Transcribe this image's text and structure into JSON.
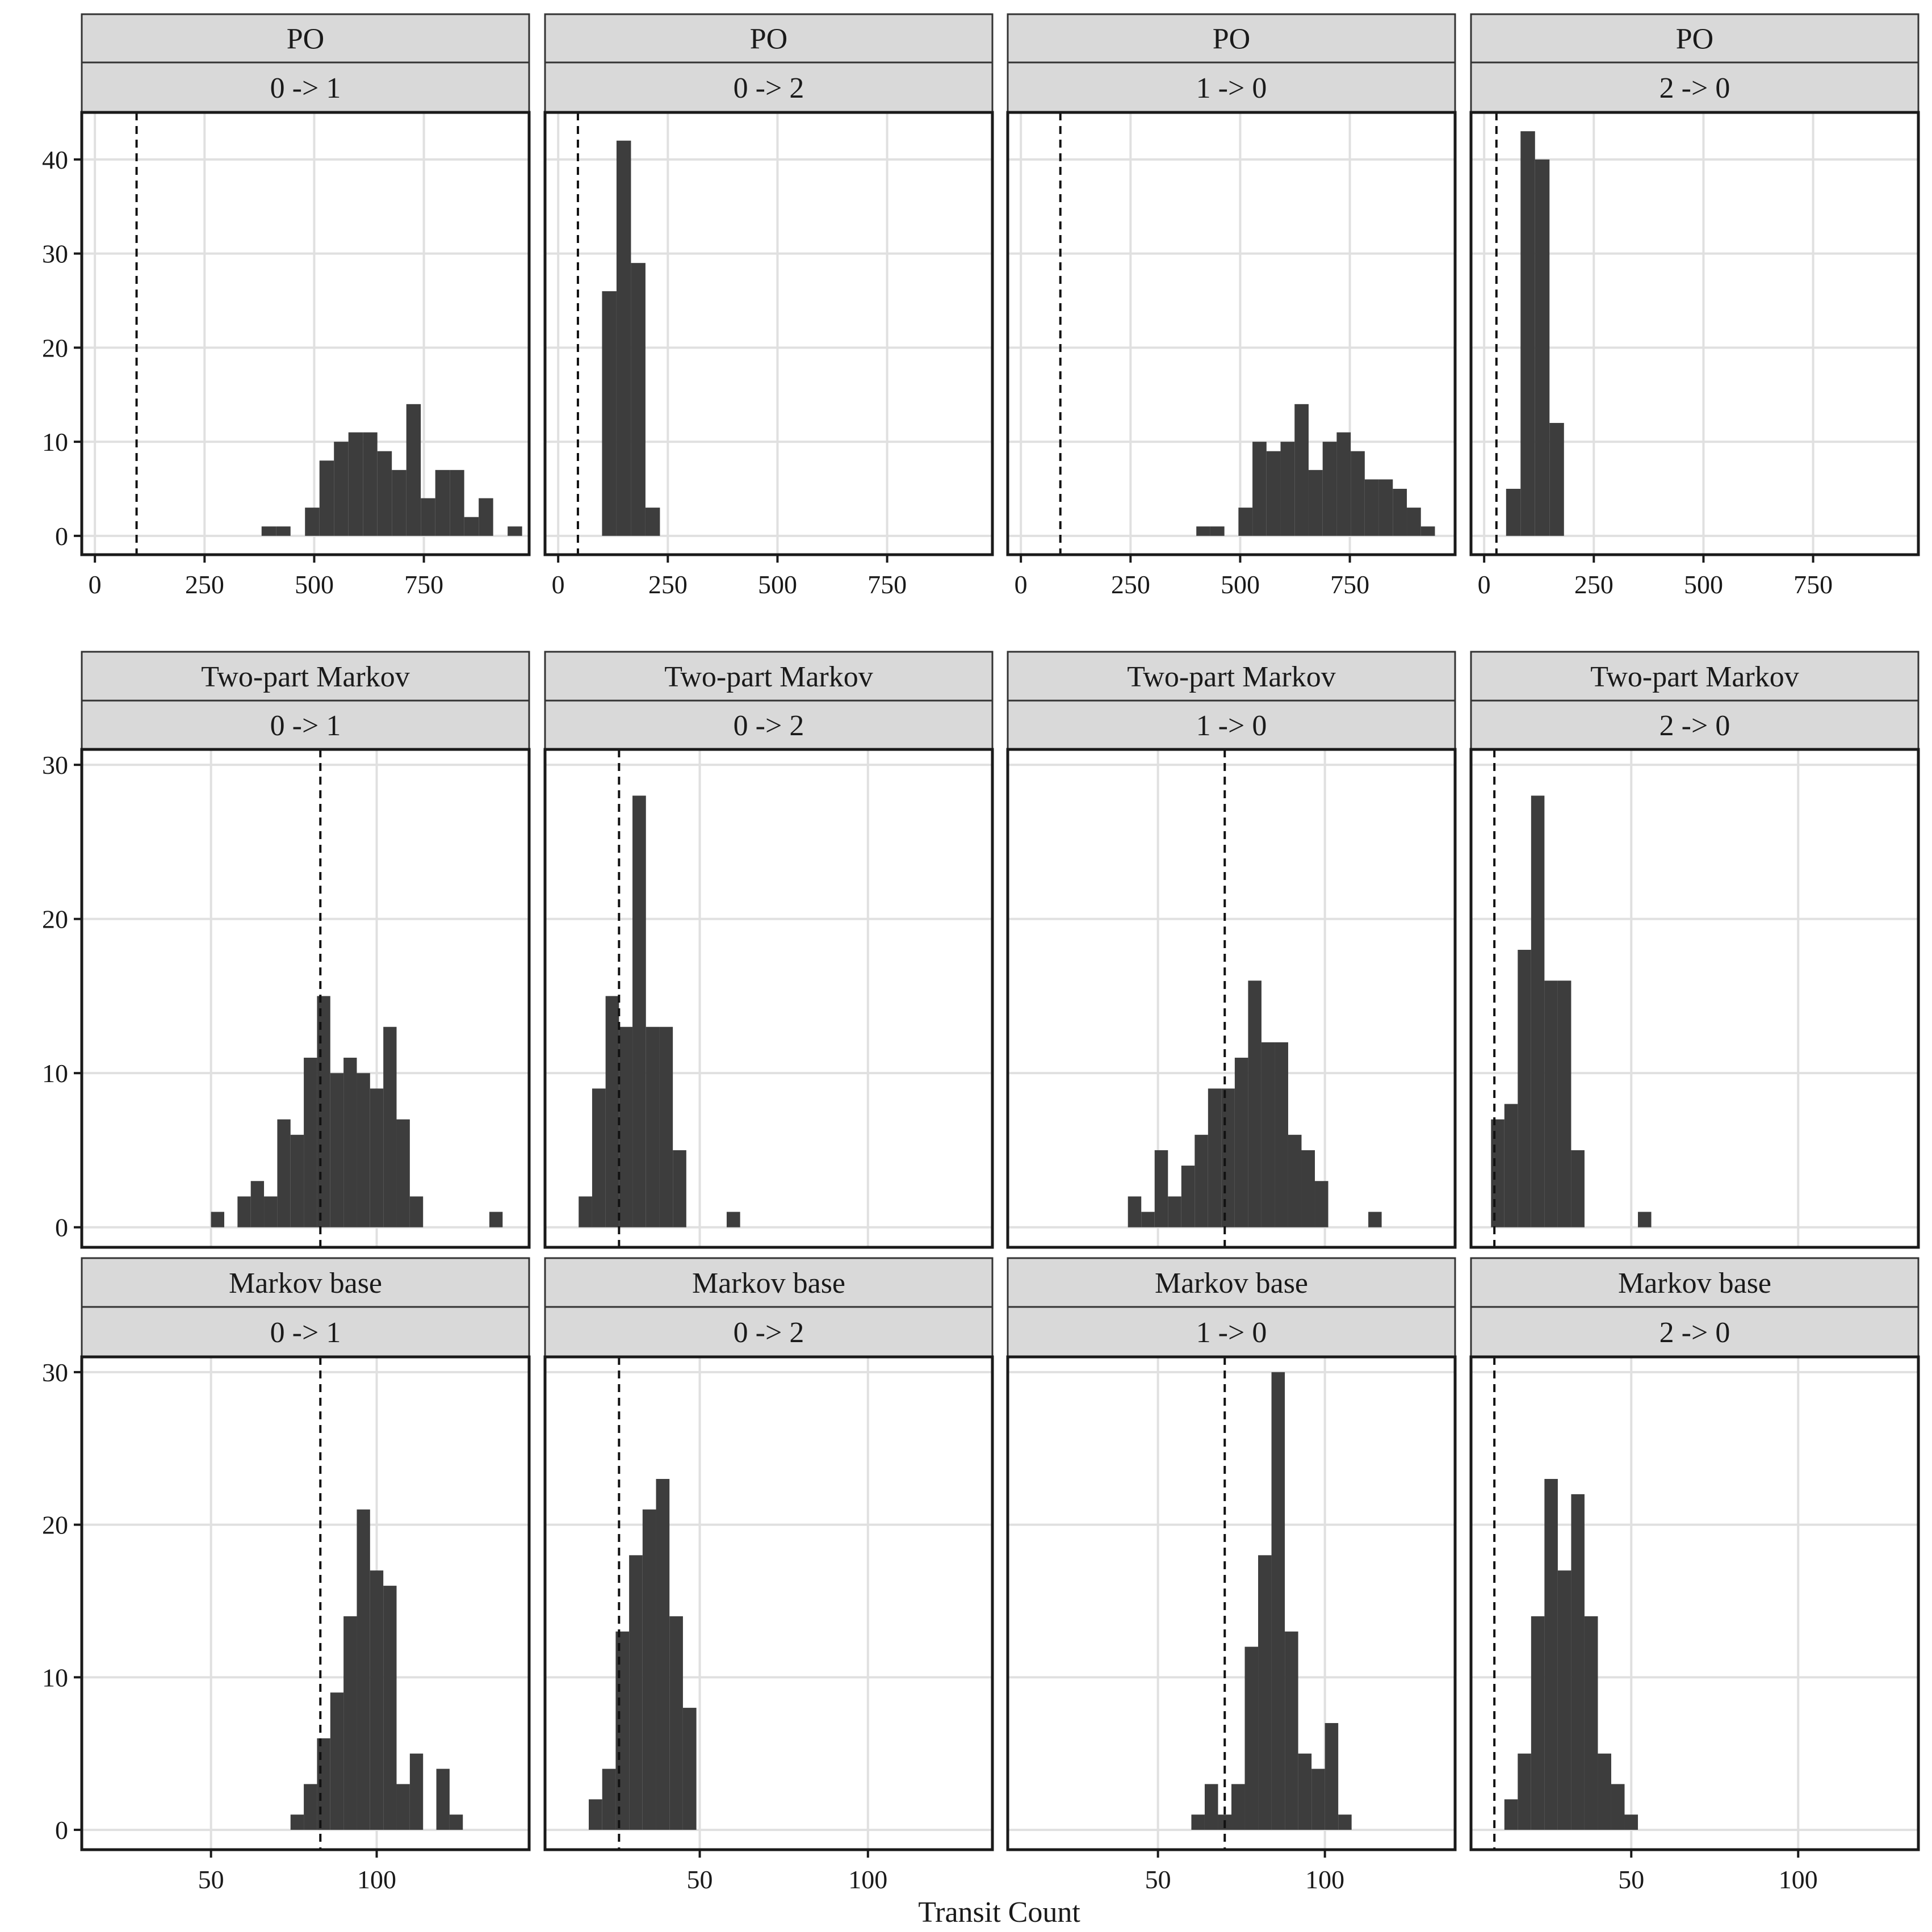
{
  "figure": {
    "xlabel": "Transit Count",
    "colors": {
      "bar": "#3d3d3d",
      "strip_fill": "#d9d9d9",
      "strip_border": "#333333",
      "grid": "#e0e0e0",
      "frame": "#1a1a1a",
      "ref_line": "#111111"
    }
  },
  "chart_data": [
    {
      "type": "bar",
      "row": 0,
      "col": 0,
      "facet": {
        "model": "PO",
        "transition": "0 -> 1"
      },
      "xlim": [
        -30,
        990
      ],
      "ylim": [
        -2,
        45
      ],
      "xticks": [
        0,
        250,
        500,
        750
      ],
      "yticks": [
        0,
        10,
        20,
        30,
        40
      ],
      "x_tick_labels": [
        "0",
        "250",
        "500",
        "750"
      ],
      "y_tick_labels": [
        "0",
        "10",
        "20",
        "30",
        "40"
      ],
      "show_x_ticks": true,
      "show_y_ticks": true,
      "ref_x": 95,
      "bin_edges": [
        380,
        413,
        446,
        479,
        512,
        545,
        578,
        611,
        644,
        677,
        710,
        743,
        776,
        809,
        842,
        875,
        908,
        941,
        974
      ],
      "counts": [
        1,
        1,
        0,
        3,
        8,
        10,
        11,
        11,
        9,
        7,
        14,
        4,
        7,
        7,
        2,
        4,
        0,
        1
      ]
    },
    {
      "type": "bar",
      "row": 0,
      "col": 1,
      "facet": {
        "model": "PO",
        "transition": "0 -> 2"
      },
      "xlim": [
        -30,
        990
      ],
      "ylim": [
        -2,
        45
      ],
      "xticks": [
        0,
        250,
        500,
        750
      ],
      "yticks": [
        0,
        10,
        20,
        30,
        40
      ],
      "x_tick_labels": [
        "0",
        "250",
        "500",
        "750"
      ],
      "y_tick_labels": [
        "0",
        "10",
        "20",
        "30",
        "40"
      ],
      "show_x_ticks": true,
      "show_y_ticks": false,
      "ref_x": 45,
      "bin_edges": [
        100,
        133,
        166,
        199,
        232
      ],
      "counts": [
        26,
        42,
        29,
        3
      ]
    },
    {
      "type": "bar",
      "row": 0,
      "col": 2,
      "facet": {
        "model": "PO",
        "transition": "1 -> 0"
      },
      "xlim": [
        -30,
        990
      ],
      "ylim": [
        -2,
        45
      ],
      "xticks": [
        0,
        250,
        500,
        750
      ],
      "yticks": [
        0,
        10,
        20,
        30,
        40
      ],
      "x_tick_labels": [
        "0",
        "250",
        "500",
        "750"
      ],
      "y_tick_labels": [
        "0",
        "10",
        "20",
        "30",
        "40"
      ],
      "show_x_ticks": true,
      "show_y_ticks": false,
      "ref_x": 90,
      "bin_edges": [
        400,
        432,
        464,
        496,
        528,
        560,
        592,
        624,
        656,
        688,
        720,
        752,
        784,
        816,
        848,
        880,
        912,
        944
      ],
      "counts": [
        1,
        1,
        0,
        3,
        10,
        9,
        10,
        14,
        7,
        10,
        11,
        9,
        6,
        6,
        5,
        3,
        1
      ]
    },
    {
      "type": "bar",
      "row": 0,
      "col": 3,
      "facet": {
        "model": "PO",
        "transition": "2 -> 0"
      },
      "xlim": [
        -30,
        990
      ],
      "ylim": [
        -2,
        45
      ],
      "xticks": [
        0,
        250,
        500,
        750
      ],
      "yticks": [
        0,
        10,
        20,
        30,
        40
      ],
      "x_tick_labels": [
        "0",
        "250",
        "500",
        "750"
      ],
      "y_tick_labels": [
        "0",
        "10",
        "20",
        "30",
        "40"
      ],
      "show_x_ticks": true,
      "show_y_ticks": false,
      "ref_x": 28,
      "bin_edges": [
        50,
        83,
        116,
        149,
        182
      ],
      "counts": [
        5,
        43,
        40,
        12
      ]
    },
    {
      "type": "bar",
      "row": 1,
      "col": 0,
      "facet": {
        "model": "Two-part Markov",
        "transition": "0 -> 1"
      },
      "xlim": [
        11,
        146
      ],
      "ylim": [
        -1.3,
        31
      ],
      "xticks": [
        50,
        100
      ],
      "yticks": [
        0,
        10,
        20,
        30
      ],
      "x_tick_labels": [
        "50",
        "100"
      ],
      "y_tick_labels": [
        "0",
        "10",
        "20",
        "30"
      ],
      "show_x_ticks": false,
      "show_y_ticks": true,
      "ref_x": 83,
      "bin_edges": [
        50,
        54,
        58,
        62,
        66,
        70,
        74,
        78,
        82,
        86,
        90,
        94,
        98,
        102,
        106,
        110,
        114,
        118,
        122,
        126,
        130,
        134,
        138
      ],
      "counts": [
        1,
        0,
        2,
        3,
        2,
        7,
        6,
        11,
        15,
        10,
        11,
        10,
        9,
        13,
        7,
        2,
        0,
        0,
        0,
        0,
        0,
        1
      ]
    },
    {
      "type": "bar",
      "row": 1,
      "col": 1,
      "facet": {
        "model": "Two-part Markov",
        "transition": "0 -> 2"
      },
      "xlim": [
        4,
        137
      ],
      "ylim": [
        -1.3,
        31
      ],
      "xticks": [
        50,
        100
      ],
      "yticks": [
        0,
        10,
        20,
        30
      ],
      "x_tick_labels": [
        "50",
        "100"
      ],
      "y_tick_labels": [
        "0",
        "10",
        "20",
        "30"
      ],
      "show_x_ticks": false,
      "show_y_ticks": false,
      "ref_x": 26,
      "bin_edges": [
        14,
        18,
        22,
        26,
        30,
        34,
        38,
        42,
        46,
        50,
        54,
        58,
        62
      ],
      "counts": [
        2,
        9,
        15,
        13,
        28,
        13,
        13,
        5,
        0,
        0,
        0,
        1
      ]
    },
    {
      "type": "bar",
      "row": 1,
      "col": 2,
      "facet": {
        "model": "Two-part Markov",
        "transition": "1 -> 0"
      },
      "xlim": [
        5,
        139
      ],
      "ylim": [
        -1.3,
        31
      ],
      "xticks": [
        50,
        100
      ],
      "yticks": [
        0,
        10,
        20,
        30
      ],
      "x_tick_labels": [
        "50",
        "100"
      ],
      "y_tick_labels": [
        "0",
        "10",
        "20",
        "30"
      ],
      "show_x_ticks": false,
      "show_y_ticks": false,
      "ref_x": 70,
      "bin_edges": [
        41,
        45,
        49,
        53,
        57,
        61,
        65,
        69,
        73,
        77,
        81,
        85,
        89,
        93,
        97,
        101,
        105,
        109,
        113,
        117
      ],
      "counts": [
        2,
        1,
        5,
        2,
        4,
        6,
        9,
        9,
        11,
        16,
        12,
        12,
        6,
        5,
        3,
        0,
        0,
        0,
        1
      ]
    },
    {
      "type": "bar",
      "row": 1,
      "col": 3,
      "facet": {
        "model": "Two-part Markov",
        "transition": "2 -> 0"
      },
      "xlim": [
        2,
        136
      ],
      "ylim": [
        -1.3,
        31
      ],
      "xticks": [
        50,
        100
      ],
      "yticks": [
        0,
        10,
        20,
        30
      ],
      "x_tick_labels": [
        "50",
        "100"
      ],
      "y_tick_labels": [
        "0",
        "10",
        "20",
        "30"
      ],
      "show_x_ticks": false,
      "show_y_ticks": false,
      "ref_x": 9,
      "bin_edges": [
        8,
        12,
        16,
        20,
        24,
        28,
        32,
        36,
        40,
        44,
        48,
        52,
        56
      ],
      "counts": [
        7,
        8,
        18,
        28,
        16,
        16,
        5,
        0,
        0,
        0,
        0,
        1
      ]
    },
    {
      "type": "bar",
      "row": 2,
      "col": 0,
      "facet": {
        "model": "Markov base",
        "transition": "0 -> 1"
      },
      "xlim": [
        11,
        146
      ],
      "ylim": [
        -1.3,
        31
      ],
      "xticks": [
        50,
        100
      ],
      "yticks": [
        0,
        10,
        20,
        30
      ],
      "x_tick_labels": [
        "50",
        "100"
      ],
      "y_tick_labels": [
        "0",
        "10",
        "20",
        "30"
      ],
      "show_x_ticks": true,
      "show_y_ticks": true,
      "ref_x": 83,
      "bin_edges": [
        74,
        78,
        82,
        86,
        90,
        94,
        98,
        102,
        106,
        110,
        114,
        118,
        122,
        126,
        130
      ],
      "counts": [
        1,
        3,
        6,
        9,
        14,
        21,
        17,
        16,
        3,
        5,
        0,
        4,
        1,
        0
      ]
    },
    {
      "type": "bar",
      "row": 2,
      "col": 1,
      "facet": {
        "model": "Markov base",
        "transition": "0 -> 2"
      },
      "xlim": [
        4,
        137
      ],
      "ylim": [
        -1.3,
        31
      ],
      "xticks": [
        50,
        100
      ],
      "yticks": [
        0,
        10,
        20,
        30
      ],
      "x_tick_labels": [
        "50",
        "100"
      ],
      "y_tick_labels": [
        "0",
        "10",
        "20",
        "30"
      ],
      "show_x_ticks": true,
      "show_y_ticks": false,
      "ref_x": 26,
      "bin_edges": [
        17,
        21,
        25,
        29,
        33,
        37,
        41,
        45,
        49,
        53,
        57
      ],
      "counts": [
        2,
        4,
        13,
        18,
        21,
        23,
        14,
        8,
        0,
        0
      ]
    },
    {
      "type": "bar",
      "row": 2,
      "col": 2,
      "facet": {
        "model": "Markov base",
        "transition": "1 -> 0"
      },
      "xlim": [
        5,
        139
      ],
      "ylim": [
        -1.3,
        31
      ],
      "xticks": [
        50,
        100
      ],
      "yticks": [
        0,
        10,
        20,
        30
      ],
      "x_tick_labels": [
        "50",
        "100"
      ],
      "y_tick_labels": [
        "0",
        "10",
        "20",
        "30"
      ],
      "show_x_ticks": true,
      "show_y_ticks": false,
      "ref_x": 70,
      "bin_edges": [
        60,
        64,
        68,
        72,
        76,
        80,
        84,
        88,
        92,
        96,
        100,
        104,
        108,
        112,
        116
      ],
      "counts": [
        1,
        3,
        1,
        3,
        12,
        18,
        30,
        13,
        5,
        4,
        7,
        1,
        0,
        0
      ]
    },
    {
      "type": "bar",
      "row": 2,
      "col": 3,
      "facet": {
        "model": "Markov base",
        "transition": "2 -> 0"
      },
      "xlim": [
        2,
        136
      ],
      "ylim": [
        -1.3,
        31
      ],
      "xticks": [
        50,
        100
      ],
      "yticks": [
        0,
        10,
        20,
        30
      ],
      "x_tick_labels": [
        "50",
        "100"
      ],
      "y_tick_labels": [
        "0",
        "10",
        "20",
        "30"
      ],
      "show_x_ticks": true,
      "show_y_ticks": false,
      "ref_x": 9,
      "bin_edges": [
        12,
        16,
        20,
        24,
        28,
        32,
        36,
        40,
        44,
        48,
        52,
        56
      ],
      "counts": [
        2,
        5,
        14,
        23,
        17,
        22,
        14,
        5,
        3,
        1,
        0
      ]
    }
  ]
}
